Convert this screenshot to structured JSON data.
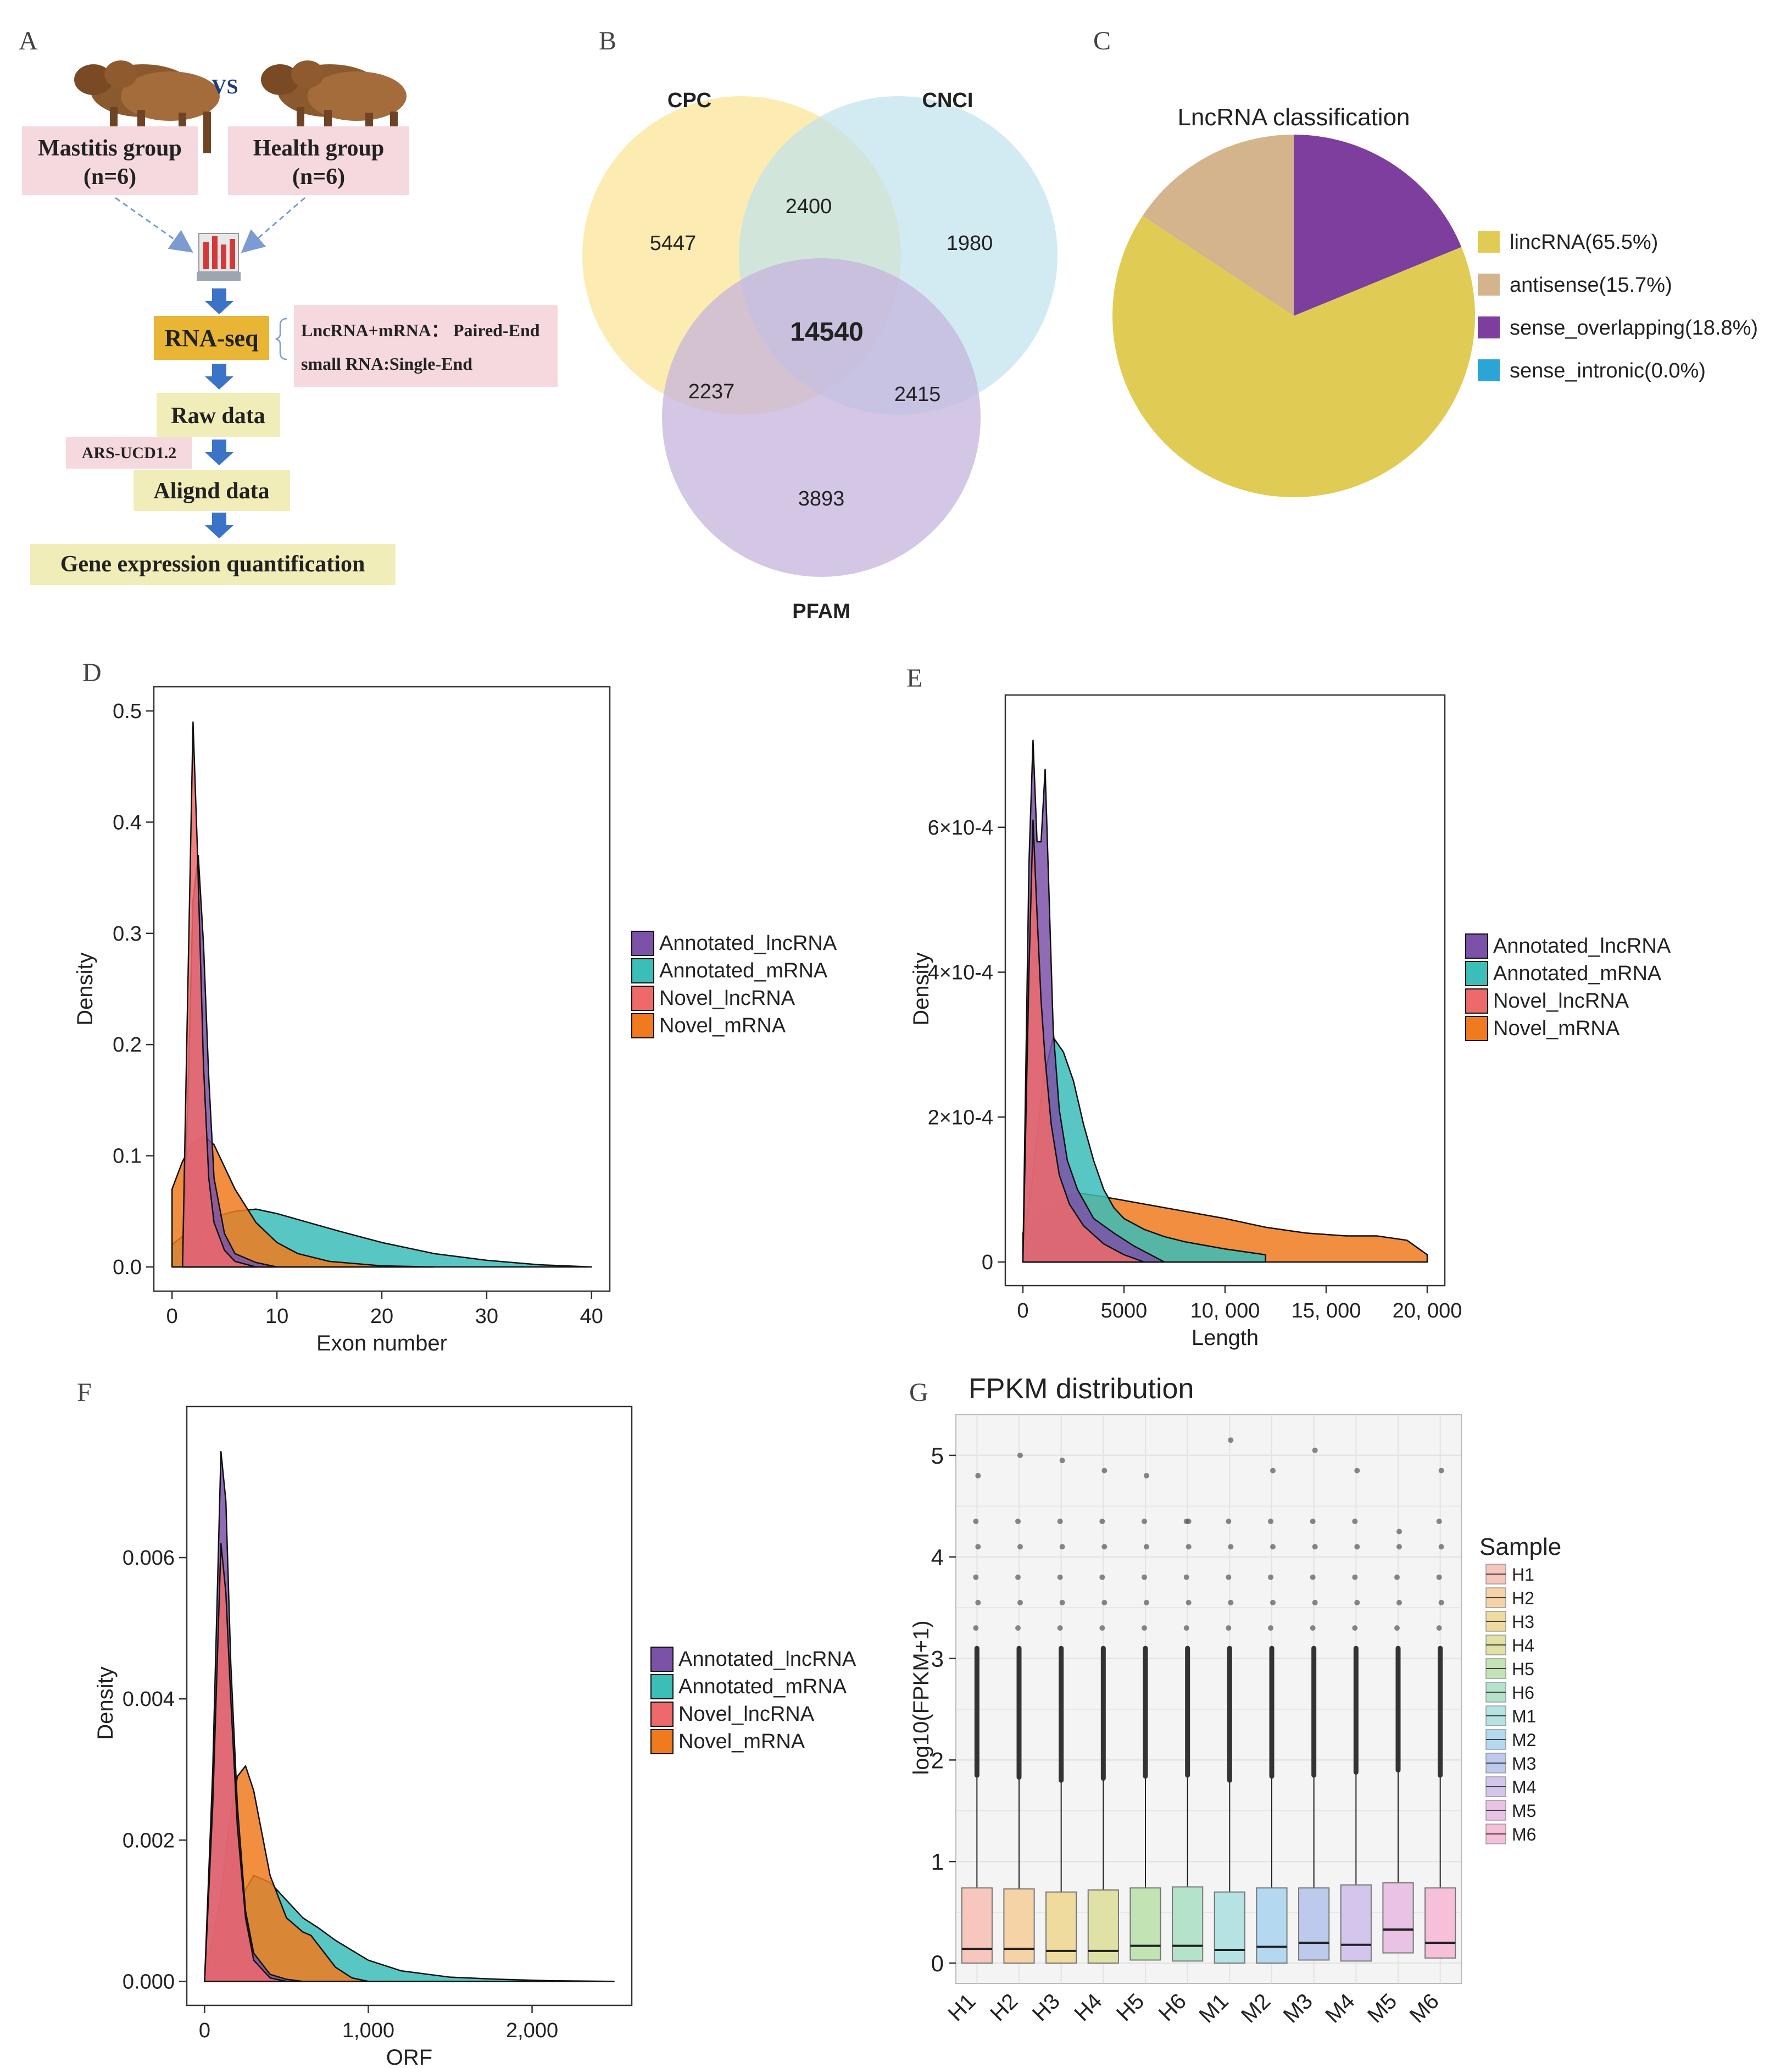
{
  "colors": {
    "annotated_lncrna": "#7B52A8",
    "annotated_mrna": "#3BBDB8",
    "novel_lncrna": "#EE6A6A",
    "novel_mrna": "#F07A1E",
    "pink_box": "#F6D9DE",
    "yellow_box": "#F1EDB9",
    "rnaseq_box": "#E9B534",
    "arrow": "#3B73C8"
  },
  "panel_labels": {
    "A": "A",
    "B": "B",
    "C": "C",
    "D": "D",
    "E": "E",
    "F": "F",
    "G": "G"
  },
  "workflow": {
    "vs": "VS",
    "mastitis_title": "Mastitis group",
    "mastitis_n": "(n=6)",
    "health_title": "Health group",
    "health_n": "(n=6)",
    "rnaseq": "RNA-seq",
    "seq_line1": "LncRNA+mRNA： Paired-End",
    "seq_line2": "small RNA:Single-End",
    "raw_data": "Raw data",
    "reference": "ARS-UCD1.2",
    "aligned": "Alignd data",
    "quantification": "Gene expression quantification"
  },
  "venn": {
    "labels": [
      "CPC",
      "CNCI",
      "PFAM"
    ],
    "colors": [
      "#FDE9A4",
      "#BFE3EC",
      "#CBB9E0"
    ],
    "regions": {
      "cpc_only": "5447",
      "cnci_only": "1980",
      "pfam_only": "3893",
      "cpc_cnci": "2400",
      "cpc_pfam": "2237",
      "cnci_pfam": "2415",
      "all": "14540"
    }
  },
  "chart_data": [
    {
      "id": "C",
      "type": "pie",
      "title": "LncRNA  classification",
      "slices": [
        {
          "name": "lincRNA(65.5%)",
          "value": 65.5,
          "color": "#E0CC55"
        },
        {
          "name": "antisense(15.7%)",
          "value": 15.7,
          "color": "#D4B48C"
        },
        {
          "name": "sense_overlapping(18.8%)",
          "value": 18.8,
          "color": "#7E3E9E"
        },
        {
          "name": "sense_intronic(0.0%)",
          "value": 0.0,
          "color": "#2AA5D6"
        }
      ]
    },
    {
      "id": "D",
      "type": "area",
      "xlabel": "Exon number",
      "ylabel": "Density",
      "xlim": [
        0,
        40
      ],
      "ylim": [
        0,
        0.5
      ],
      "xticks": [
        "0",
        "10",
        "20",
        "30",
        "40"
      ],
      "yticks": [
        "0.0",
        "0.1",
        "0.2",
        "0.3",
        "0.4",
        "0.5"
      ],
      "legend": [
        "Annotated_lncRNA",
        "Annotated_mRNA",
        "Novel_lncRNA",
        "Novel_mRNA"
      ],
      "series": [
        {
          "name": "Annotated_mRNA",
          "x": [
            0,
            2,
            4,
            6,
            8,
            10,
            13,
            16,
            20,
            25,
            30,
            35,
            40
          ],
          "y": [
            0.02,
            0.035,
            0.045,
            0.05,
            0.052,
            0.048,
            0.04,
            0.032,
            0.022,
            0.012,
            0.006,
            0.002,
            0.0
          ]
        },
        {
          "name": "Novel_mRNA",
          "x": [
            0,
            1,
            2,
            3,
            4,
            5,
            6,
            8,
            10,
            12,
            15,
            20,
            25
          ],
          "y": [
            0.07,
            0.095,
            0.112,
            0.118,
            0.11,
            0.09,
            0.07,
            0.04,
            0.022,
            0.012,
            0.005,
            0.001,
            0.0
          ]
        },
        {
          "name": "Annotated_lncRNA",
          "x": [
            1,
            1.5,
            2,
            2.5,
            3,
            3.5,
            4,
            5,
            6,
            8,
            10
          ],
          "y": [
            0.0,
            0.15,
            0.33,
            0.37,
            0.29,
            0.17,
            0.08,
            0.03,
            0.012,
            0.004,
            0.0
          ]
        },
        {
          "name": "Novel_lncRNA",
          "x": [
            1,
            1.4,
            2,
            2.4,
            3,
            3.5,
            4,
            5,
            6,
            8
          ],
          "y": [
            0.0,
            0.2,
            0.49,
            0.38,
            0.18,
            0.08,
            0.04,
            0.015,
            0.005,
            0.0
          ]
        }
      ]
    },
    {
      "id": "E",
      "type": "area",
      "xlabel": "Length",
      "ylabel": "Density",
      "xlim": [
        0,
        20000
      ],
      "ylim": [
        0,
        0.00075
      ],
      "xticks": [
        "0",
        "5000",
        "10, 000",
        "15, 000",
        "20, 000"
      ],
      "yticks": [
        "0",
        "2×10-4",
        "4×10-4",
        "6×10-4"
      ],
      "legend": [
        "Annotated_lncRNA",
        "Annotated_mRNA",
        "Novel_lncRNA",
        "Novel_mRNA"
      ],
      "series": [
        {
          "name": "Novel_mRNA",
          "x": [
            0,
            1000,
            2000,
            2800,
            4000,
            6000,
            8000,
            10000,
            12000,
            14000,
            16000,
            17500,
            19000,
            20000
          ],
          "y": [
            4e-05,
            7e-05,
            9e-05,
            9.5e-05,
            9e-05,
            8e-05,
            7e-05,
            6e-05,
            4.8e-05,
            4e-05,
            3.6e-05,
            3.6e-05,
            3e-05,
            1e-05
          ]
        },
        {
          "name": "Annotated_mRNA",
          "x": [
            0,
            500,
            1000,
            1500,
            2000,
            2500,
            3000,
            3500,
            4000,
            4500,
            5000,
            6000,
            7000,
            8000,
            10000,
            12000
          ],
          "y": [
            2e-05,
            0.00012,
            0.00025,
            0.00031,
            0.00029,
            0.00025,
            0.00019,
            0.00014,
            0.0001,
            7.5e-05,
            6e-05,
            4.5e-05,
            3.5e-05,
            2.8e-05,
            1.8e-05,
            1e-05
          ]
        },
        {
          "name": "Annotated_lncRNA",
          "x": [
            0,
            300,
            500,
            700,
            900,
            1100,
            1300,
            1500,
            1800,
            2200,
            2700,
            3500,
            4500,
            5500,
            7000
          ],
          "y": [
            0.0,
            0.00055,
            0.00072,
            0.00058,
            0.00058,
            0.00068,
            0.0005,
            0.00032,
            0.00021,
            0.00014,
            0.0001,
            6e-05,
            4e-05,
            2.2e-05,
            0.0
          ]
        },
        {
          "name": "Novel_lncRNA",
          "x": [
            0,
            300,
            500,
            700,
            900,
            1100,
            1400,
            1800,
            2300,
            3000,
            4000,
            5000,
            6000
          ],
          "y": [
            0.0,
            0.0004,
            0.00061,
            0.00048,
            0.00036,
            0.00028,
            0.00019,
            0.00012,
            8e-05,
            5e-05,
            2.5e-05,
            1e-05,
            0.0
          ]
        }
      ]
    },
    {
      "id": "F",
      "type": "area",
      "xlabel": "ORF",
      "ylabel": "Density",
      "xlim": [
        0,
        2500
      ],
      "ylim": [
        0,
        0.0078
      ],
      "xticks": [
        "0",
        "1,000",
        "2,000"
      ],
      "yticks": [
        "0.000",
        "0.002",
        "0.004",
        "0.006"
      ],
      "legend": [
        "Annotated_lncRNA",
        "Annotated_mRNA",
        "Novel_lncRNA",
        "Novel_mRNA"
      ],
      "series": [
        {
          "name": "Annotated_mRNA",
          "x": [
            0,
            100,
            200,
            300,
            400,
            500,
            600,
            700,
            800,
            1000,
            1200,
            1500,
            1800,
            2100,
            2500
          ],
          "y": [
            0.0,
            0.0004,
            0.0011,
            0.0015,
            0.0014,
            0.00115,
            0.0009,
            0.00075,
            0.00058,
            0.0003,
            0.00015,
            6e-05,
            3e-05,
            1e-05,
            0.0
          ]
        },
        {
          "name": "Novel_mRNA",
          "x": [
            0,
            100,
            150,
            200,
            250,
            300,
            350,
            400,
            500,
            600,
            650,
            700,
            800,
            900,
            1000
          ],
          "y": [
            0.0,
            0.0012,
            0.0022,
            0.0029,
            0.00305,
            0.0027,
            0.0021,
            0.0015,
            0.0009,
            0.0007,
            0.00065,
            0.0005,
            0.0002,
            5e-05,
            0.0
          ]
        },
        {
          "name": "Annotated_lncRNA",
          "x": [
            0,
            50,
            100,
            130,
            160,
            200,
            250,
            300,
            400,
            500,
            600
          ],
          "y": [
            0.0,
            0.003,
            0.0075,
            0.0068,
            0.0045,
            0.0025,
            0.001,
            0.0004,
            0.0001,
            3e-05,
            0.0
          ]
        },
        {
          "name": "Novel_lncRNA",
          "x": [
            0,
            50,
            100,
            130,
            160,
            200,
            250,
            300,
            400,
            500
          ],
          "y": [
            0.0,
            0.0025,
            0.0062,
            0.0055,
            0.004,
            0.0022,
            0.0009,
            0.0003,
            5e-05,
            0.0
          ]
        }
      ]
    },
    {
      "id": "G",
      "type": "box",
      "title": "FPKM distribution",
      "ylabel": "log10(FPKM+1)",
      "ylim": [
        -0.2,
        5.4
      ],
      "yticks": [
        "0",
        "1",
        "2",
        "3",
        "4",
        "5"
      ],
      "legend_title": "Sample",
      "categories": [
        "H1",
        "H2",
        "H3",
        "H4",
        "H5",
        "H6",
        "M1",
        "M2",
        "M3",
        "M4",
        "M5",
        "M6"
      ],
      "colors": [
        "#F7C7BE",
        "#F5D3A6",
        "#EFDB9E",
        "#DFE1A5",
        "#C2E3B3",
        "#B5E3C9",
        "#B5E2E2",
        "#B3D8F0",
        "#BDCAEE",
        "#D3C5EC",
        "#E9C2E6",
        "#F6C0DA"
      ],
      "boxes": [
        {
          "q1": 0.0,
          "median": 0.14,
          "q3": 0.74,
          "whisker_hi": 1.85,
          "max": 4.8
        },
        {
          "q1": 0.0,
          "median": 0.14,
          "q3": 0.73,
          "whisker_hi": 1.83,
          "max": 5.0
        },
        {
          "q1": 0.0,
          "median": 0.12,
          "q3": 0.7,
          "whisker_hi": 1.8,
          "max": 4.95
        },
        {
          "q1": 0.0,
          "median": 0.12,
          "q3": 0.72,
          "whisker_hi": 1.82,
          "max": 4.85
        },
        {
          "q1": 0.03,
          "median": 0.17,
          "q3": 0.74,
          "whisker_hi": 1.84,
          "max": 4.8
        },
        {
          "q1": 0.02,
          "median": 0.17,
          "q3": 0.75,
          "whisker_hi": 1.85,
          "max": 4.35
        },
        {
          "q1": 0.0,
          "median": 0.13,
          "q3": 0.7,
          "whisker_hi": 1.8,
          "max": 5.15
        },
        {
          "q1": 0.0,
          "median": 0.16,
          "q3": 0.74,
          "whisker_hi": 1.84,
          "max": 4.85
        },
        {
          "q1": 0.03,
          "median": 0.2,
          "q3": 0.74,
          "whisker_hi": 1.85,
          "max": 5.05
        },
        {
          "q1": 0.02,
          "median": 0.18,
          "q3": 0.77,
          "whisker_hi": 1.88,
          "max": 4.85
        },
        {
          "q1": 0.1,
          "median": 0.33,
          "q3": 0.79,
          "whisker_hi": 1.9,
          "max": 4.25
        },
        {
          "q1": 0.05,
          "median": 0.2,
          "q3": 0.74,
          "whisker_hi": 1.85,
          "max": 4.85
        }
      ]
    }
  ]
}
